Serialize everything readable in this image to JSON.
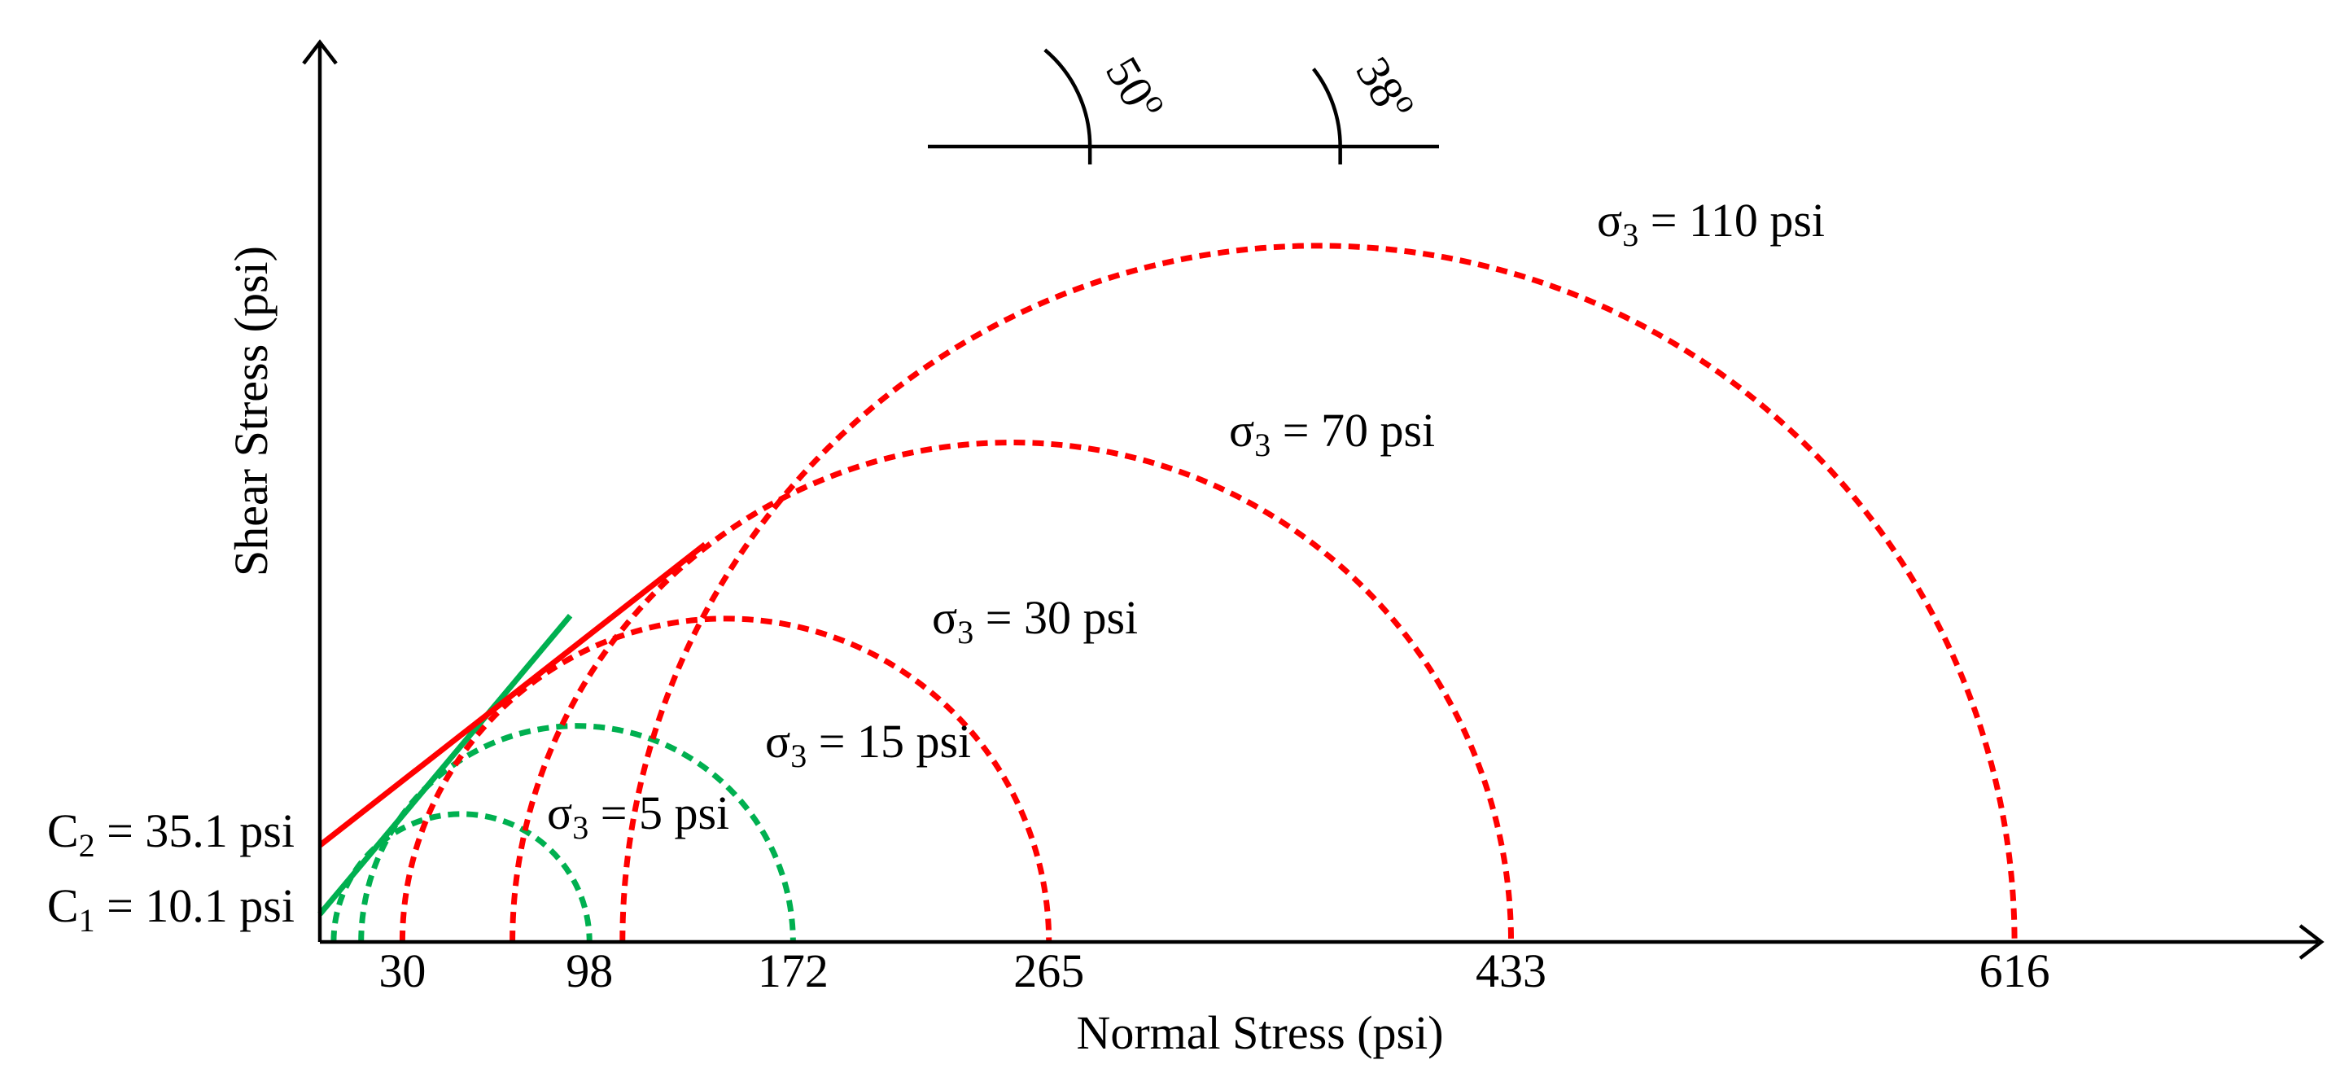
{
  "chart_data": {
    "type": "scatter",
    "title": "",
    "xlabel": "Normal Stress (psi)",
    "ylabel": "Shear Stress (psi)",
    "xlim": [
      0,
      740
    ],
    "ylim": [
      0,
      290
    ],
    "xticks": [
      "30",
      "98",
      "172",
      "265",
      "433",
      "616"
    ],
    "intercept_labels": [
      "C2 = 35.1 psi",
      "C1 = 10.1 psi"
    ],
    "intercepts": [
      35.1,
      10.1
    ],
    "envelopes": [
      {
        "color": "#00b050",
        "cohesion": 10.1,
        "friction_angle_deg": 50,
        "angle_label": "50o"
      },
      {
        "color": "#ff0000",
        "cohesion": 35.1,
        "friction_angle_deg": 38,
        "angle_label": "38o"
      }
    ],
    "circles": [
      {
        "confining_pressure": "5 psi",
        "label": "σ3 = 5 psi",
        "sigma3": 5,
        "sigma1": 98,
        "color": "#00b050"
      },
      {
        "confining_pressure": "15 psi",
        "label": "σ3 = 15 psi",
        "sigma3": 15,
        "sigma1": 172,
        "color": "#00b050"
      },
      {
        "confining_pressure": "30 psi",
        "label": "σ3 = 30 psi",
        "sigma3": 30,
        "sigma1": 265,
        "color": "#ff0000"
      },
      {
        "confining_pressure": "70 psi",
        "label": "σ3 = 70 psi",
        "sigma3": 70,
        "sigma1": 433,
        "color": "#ff0000"
      },
      {
        "confining_pressure": "110 psi",
        "label": "σ3 = 110 psi",
        "sigma3": 110,
        "sigma1": 616,
        "color": "#ff0000"
      }
    ],
    "grid": false,
    "legend": "none"
  }
}
